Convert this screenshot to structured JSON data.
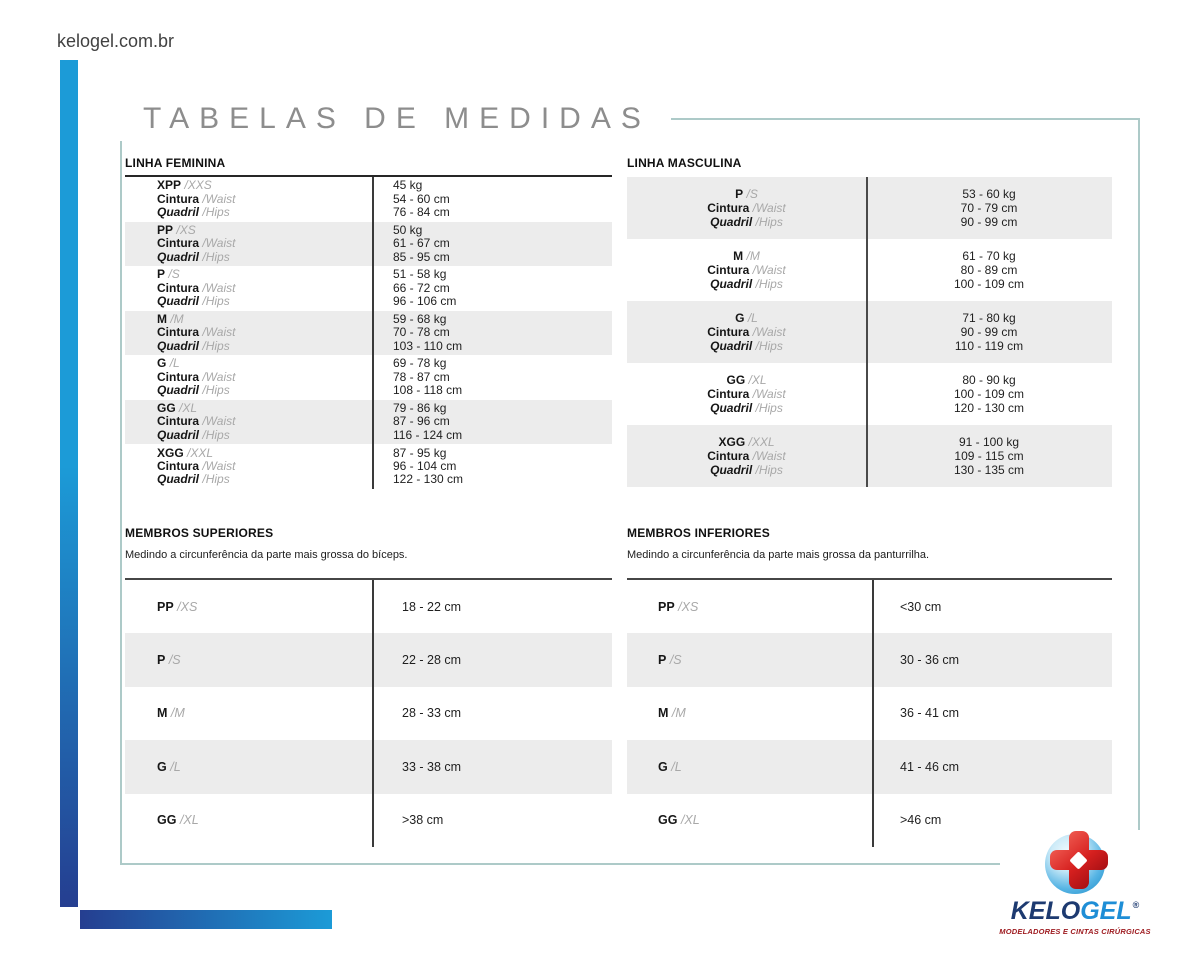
{
  "page": {
    "site_url": "kelogel.com.br",
    "title": "TABELAS DE MEDIDAS"
  },
  "tables": {
    "shared_labels": {
      "waist": "Cintura",
      "waist_alt": "/Waist",
      "hips": "Quadril",
      "hips_alt": "/Hips"
    },
    "feminina": {
      "heading": "LINHA FEMININA",
      "rows": [
        {
          "size": "XPP",
          "size_alt": "/XXS",
          "weight": "45 kg",
          "waist": "54 - 60 cm",
          "hips": "76 - 84 cm"
        },
        {
          "size": "PP",
          "size_alt": "/XS",
          "weight": "50 kg",
          "waist": "61 - 67 cm",
          "hips": "85 - 95 cm"
        },
        {
          "size": "P",
          "size_alt": "/S",
          "weight": "51 - 58 kg",
          "waist": "66 - 72 cm",
          "hips": "96 - 106 cm"
        },
        {
          "size": "M",
          "size_alt": "/M",
          "weight": "59 - 68 kg",
          "waist": "70 - 78 cm",
          "hips": "103 - 110 cm"
        },
        {
          "size": "G",
          "size_alt": "/L",
          "weight": "69 - 78 kg",
          "waist": "78 - 87 cm",
          "hips": "108 - 118 cm"
        },
        {
          "size": "GG",
          "size_alt": "/XL",
          "weight": "79 - 86 kg",
          "waist": "87 - 96 cm",
          "hips": "116 - 124 cm"
        },
        {
          "size": "XGG",
          "size_alt": "/XXL",
          "weight": "87 - 95 kg",
          "waist": "96 - 104 cm",
          "hips": "122 - 130 cm"
        }
      ]
    },
    "masculina": {
      "heading": "LINHA MASCULINA",
      "rows": [
        {
          "size": "P",
          "size_alt": "/S",
          "weight": "53 - 60 kg",
          "waist": "70 - 79 cm",
          "hips": "90 - 99 cm"
        },
        {
          "size": "M",
          "size_alt": "/M",
          "weight": "61 - 70 kg",
          "waist": "80 - 89 cm",
          "hips": "100 - 109 cm"
        },
        {
          "size": "G",
          "size_alt": "/L",
          "weight": "71 - 80 kg",
          "waist": "90 - 99 cm",
          "hips": "110 - 119 cm"
        },
        {
          "size": "GG",
          "size_alt": "/XL",
          "weight": "80 - 90 kg",
          "waist": "100 - 109 cm",
          "hips": "120 - 130 cm"
        },
        {
          "size": "XGG",
          "size_alt": "/XXL",
          "weight": "91 - 100 kg",
          "waist": "109 - 115 cm",
          "hips": "130 - 135 cm"
        }
      ]
    },
    "membros_superiores": {
      "heading": "MEMBROS SUPERIORES",
      "description": "Medindo a circunferência da parte mais grossa do bíceps.",
      "rows": [
        {
          "size": "PP",
          "size_alt": "/XS",
          "value": "18 - 22 cm"
        },
        {
          "size": "P",
          "size_alt": "/S",
          "value": "22 - 28 cm"
        },
        {
          "size": "M",
          "size_alt": "/M",
          "value": "28 - 33 cm"
        },
        {
          "size": "G",
          "size_alt": "/L",
          "value": "33 - 38 cm"
        },
        {
          "size": "GG",
          "size_alt": "/XL",
          "value": ">38 cm"
        }
      ]
    },
    "membros_inferiores": {
      "heading": "MEMBROS INFERIORES",
      "description": "Medindo a circunferência da parte mais grossa da panturrilha.",
      "rows": [
        {
          "size": "PP",
          "size_alt": "/XS",
          "value": "<30 cm"
        },
        {
          "size": "P",
          "size_alt": "/S",
          "value": "30 - 36 cm"
        },
        {
          "size": "M",
          "size_alt": "/M",
          "value": "36 - 41 cm"
        },
        {
          "size": "G",
          "size_alt": "/L",
          "value": "41 - 46 cm"
        },
        {
          "size": "GG",
          "size_alt": "/XL",
          "value": ">46 cm"
        }
      ]
    }
  },
  "logo": {
    "brand_primary": "KELO",
    "brand_secondary": "GEL",
    "registered_mark": "®",
    "tagline": "MODELADORES E CINTAS CIRÚRGICAS"
  },
  "colors": {
    "accent_blue": "#1c9bd7",
    "accent_navy": "#253e90",
    "frame_teal": "#adcac8",
    "row_alt_gray": "#ececec",
    "title_gray": "#8d8d8d",
    "logo_navy": "#1d3a70",
    "logo_blue": "#1e8ed6",
    "logo_red": "#c3161c",
    "tagline_red": "#9e1b20"
  }
}
